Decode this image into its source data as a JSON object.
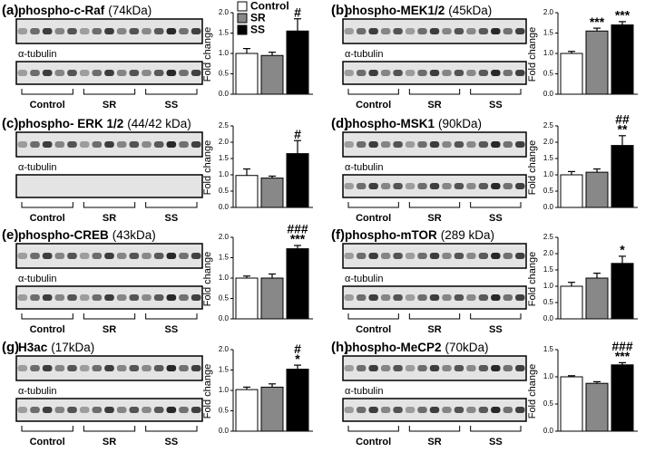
{
  "legend": [
    {
      "name": "Control",
      "color": "#ffffff"
    },
    {
      "name": "SR",
      "color": "#888888"
    },
    {
      "name": "SS",
      "color": "#000000"
    }
  ],
  "chart_data": [
    {
      "type": "bar",
      "panel": "(a)",
      "protein": "phospho-c-Raf",
      "size": "(74kDa)",
      "loading": "α-tubulin",
      "groups": [
        "Control",
        "SR",
        "SS"
      ],
      "ylabel": "Fold change",
      "values": [
        1.0,
        0.95,
        1.55
      ],
      "errors": [
        0.12,
        0.08,
        0.3
      ],
      "annotations": [
        [],
        [],
        [
          "#"
        ]
      ],
      "ylim": [
        0,
        2.0
      ],
      "yticks": [
        {
          "value": 0,
          "label": "0.0"
        },
        {
          "value": 0.5,
          "label": "0.5"
        },
        {
          "value": 1,
          "label": "1.0"
        },
        {
          "value": 1.5,
          "label": "1.5"
        },
        {
          "value": 2,
          "label": "2.0"
        }
      ]
    },
    {
      "type": "bar",
      "panel": "(b)",
      "protein": "phospho-MEK1/2",
      "size": "(45kDa)",
      "loading": "α-tubulin",
      "groups": [
        "Control",
        "SR",
        "SS"
      ],
      "ylabel": "Fold change",
      "values": [
        1.0,
        1.55,
        1.7
      ],
      "errors": [
        0.05,
        0.07,
        0.08
      ],
      "annotations": [
        [],
        [
          "***"
        ],
        [
          "***"
        ]
      ],
      "ylim": [
        0,
        2.0
      ],
      "yticks": [
        {
          "value": 0,
          "label": "0.0"
        },
        {
          "value": 0.5,
          "label": "0.5"
        },
        {
          "value": 1,
          "label": "1.0"
        },
        {
          "value": 1.5,
          "label": "1.5"
        },
        {
          "value": 2,
          "label": "2.0"
        }
      ]
    },
    {
      "type": "bar",
      "panel": "(c)",
      "protein": "phospho- ERK 1/2",
      "size": "(44/42 kDa)",
      "loading": "α-tubulin",
      "groups": [
        "Control",
        "SR",
        "SS"
      ],
      "ylabel": "Fold change",
      "values": [
        0.98,
        0.9,
        1.65
      ],
      "errors": [
        0.2,
        0.06,
        0.4
      ],
      "annotations": [
        [],
        [],
        [
          "#"
        ]
      ],
      "ylim": [
        0,
        2.5
      ],
      "yticks": [
        {
          "value": 0,
          "label": "0.0"
        },
        {
          "value": 0.5,
          "label": "0.5"
        },
        {
          "value": 1,
          "label": "1.0"
        },
        {
          "value": 1.5,
          "label": "1.5"
        },
        {
          "value": 2,
          "label": "2.0"
        },
        {
          "value": 2.5,
          "label": "2.5"
        }
      ]
    },
    {
      "type": "bar",
      "panel": "(d)",
      "protein": "phospho-MSK1",
      "size": "(90kDa)",
      "loading": "α-tubulin",
      "groups": [
        "Control",
        "SR",
        "SS"
      ],
      "ylabel": "Fold change",
      "values": [
        1.0,
        1.08,
        1.9
      ],
      "errors": [
        0.1,
        0.1,
        0.3
      ],
      "annotations": [
        [],
        [],
        [
          "##",
          "**"
        ]
      ],
      "ylim": [
        0,
        2.5
      ],
      "yticks": [
        {
          "value": 0,
          "label": "0.0"
        },
        {
          "value": 0.5,
          "label": "0.5"
        },
        {
          "value": 1,
          "label": "1.0"
        },
        {
          "value": 1.5,
          "label": "1.5"
        },
        {
          "value": 2,
          "label": "2.0"
        },
        {
          "value": 2.5,
          "label": "2.5"
        }
      ]
    },
    {
      "type": "bar",
      "panel": "(e)",
      "protein": "phospho-CREB",
      "size": "(43kDa)",
      "loading": "α-tubulin",
      "groups": [
        "Control",
        "SR",
        "SS"
      ],
      "ylabel": "Fold change",
      "values": [
        1.0,
        1.0,
        1.72
      ],
      "errors": [
        0.05,
        0.1,
        0.08
      ],
      "annotations": [
        [],
        [],
        [
          "###",
          "***"
        ]
      ],
      "ylim": [
        0,
        2.0
      ],
      "yticks": [
        {
          "value": 0,
          "label": "0.0"
        },
        {
          "value": 0.5,
          "label": "0.5"
        },
        {
          "value": 1,
          "label": "1.0"
        },
        {
          "value": 1.5,
          "label": "1.5"
        },
        {
          "value": 2,
          "label": "2.0"
        }
      ]
    },
    {
      "type": "bar",
      "panel": "(f)",
      "protein": "phospho-mTOR",
      "size": "(289 kDa)",
      "loading": "α-tubulin",
      "groups": [
        "Control",
        "SR",
        "SS"
      ],
      "ylabel": "Fold change",
      "values": [
        1.0,
        1.25,
        1.7
      ],
      "errors": [
        0.12,
        0.15,
        0.22
      ],
      "annotations": [
        [],
        [],
        [
          "*"
        ]
      ],
      "ylim": [
        0,
        2.5
      ],
      "yticks": [
        {
          "value": 0,
          "label": "0.0"
        },
        {
          "value": 0.5,
          "label": "0.5"
        },
        {
          "value": 1,
          "label": "1.0"
        },
        {
          "value": 1.5,
          "label": "1.5"
        },
        {
          "value": 2,
          "label": "2.0"
        },
        {
          "value": 2.5,
          "label": "2.5"
        }
      ]
    },
    {
      "type": "bar",
      "panel": "(g)",
      "protein": "H3ac",
      "size": "(17kDa)",
      "loading": "α-tubulin",
      "groups": [
        "Control",
        "SR",
        "SS"
      ],
      "ylabel": "Fold change",
      "values": [
        1.02,
        1.08,
        1.52
      ],
      "errors": [
        0.06,
        0.08,
        0.1
      ],
      "annotations": [
        [],
        [],
        [
          "#",
          "*"
        ]
      ],
      "ylim": [
        0,
        2.0
      ],
      "yticks": [
        {
          "value": 0,
          "label": "0.0"
        },
        {
          "value": 0.5,
          "label": "0.5"
        },
        {
          "value": 1,
          "label": "1.0"
        },
        {
          "value": 1.5,
          "label": "1.5"
        },
        {
          "value": 2,
          "label": "2.0"
        }
      ]
    },
    {
      "type": "bar",
      "panel": "(h)",
      "protein": "phospho-MeCP2",
      "size": "(70kDa)",
      "loading": "α-tubulin",
      "groups": [
        "Control",
        "SR",
        "SS"
      ],
      "ylabel": "Fold change",
      "values": [
        1.0,
        0.88,
        1.22
      ],
      "errors": [
        0.02,
        0.03,
        0.04
      ],
      "annotations": [
        [],
        [],
        [
          "###",
          "***"
        ]
      ],
      "ylim": [
        0,
        1.5
      ],
      "yticks": [
        {
          "value": 0,
          "label": "0.0"
        },
        {
          "value": 0.5,
          "label": "0.5"
        },
        {
          "value": 1,
          "label": "1.0"
        },
        {
          "value": 1.5,
          "label": "1.5"
        }
      ]
    }
  ]
}
